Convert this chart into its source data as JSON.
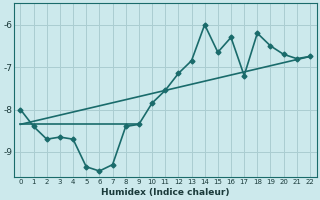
{
  "xlabel": "Humidex (Indice chaleur)",
  "bg_color": "#cce9ec",
  "grid_color": "#aacdd1",
  "line_color": "#1a6b6b",
  "xlim": [
    -0.5,
    22.5
  ],
  "ylim": [
    -9.6,
    -5.5
  ],
  "xticks": [
    0,
    1,
    2,
    3,
    4,
    5,
    6,
    7,
    8,
    9,
    10,
    11,
    12,
    13,
    14,
    15,
    16,
    17,
    18,
    19,
    20,
    21,
    22
  ],
  "yticks": [
    -9,
    -8,
    -7,
    -6
  ],
  "curve_x": [
    0,
    1,
    2,
    3,
    4,
    5,
    6,
    7,
    8,
    9,
    10,
    11,
    12,
    13,
    14,
    15,
    16,
    17,
    18,
    19,
    20,
    21,
    22
  ],
  "curve_y": [
    -8.0,
    -8.4,
    -8.7,
    -8.65,
    -8.7,
    -9.35,
    -9.45,
    -9.3,
    -8.4,
    -8.35,
    -7.85,
    -7.55,
    -7.15,
    -6.85,
    -6.0,
    -6.65,
    -6.3,
    -7.2,
    -6.2,
    -6.5,
    -6.7,
    -6.8,
    -6.75
  ],
  "flat_line_x": [
    0,
    9
  ],
  "flat_line_y": [
    -8.35,
    -8.35
  ],
  "diag_line_x": [
    0,
    22
  ],
  "diag_line_y": [
    -8.35,
    -6.75
  ],
  "marker": "D",
  "markersize": 2.5,
  "linewidth": 1.2
}
